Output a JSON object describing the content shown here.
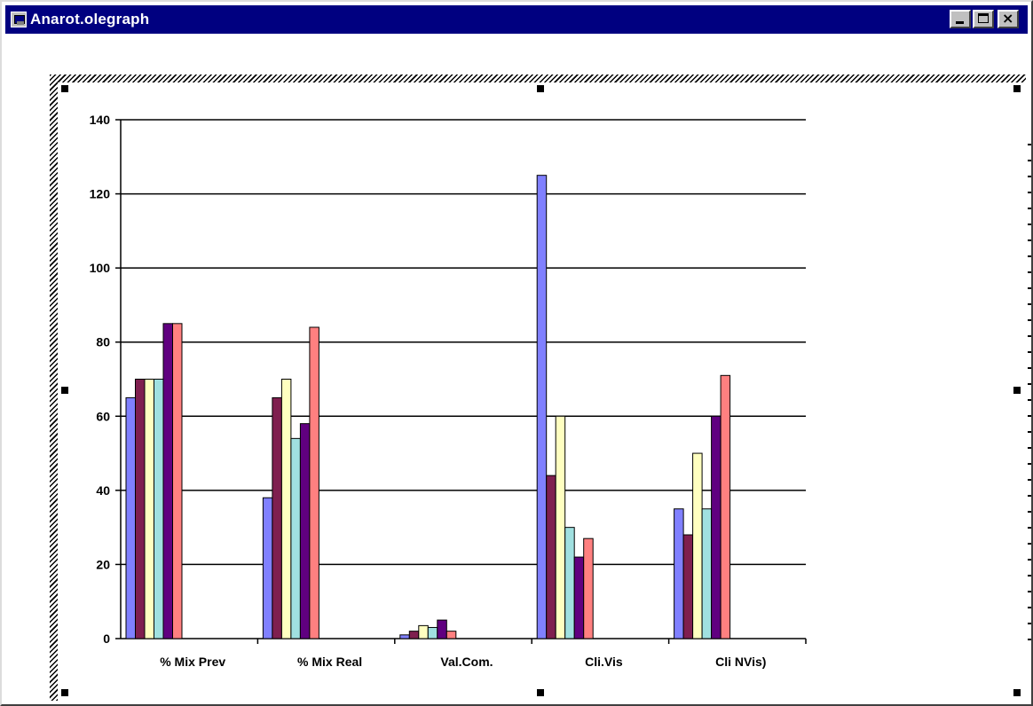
{
  "window": {
    "title": "Anarot.olegraph",
    "icon": "app-icon",
    "buttons": [
      "minimize-icon",
      "maximize-icon",
      "close-icon"
    ],
    "titlebar_color": "#000080"
  },
  "chart_data": {
    "type": "bar",
    "categories": [
      "% Mix Prev",
      "% Mix Real",
      "Val.Com.",
      "Cli.Vis",
      "Cli NVis)"
    ],
    "series": [
      {
        "color": "#8080ff",
        "values": [
          65,
          38,
          1,
          125,
          35
        ]
      },
      {
        "color": "#7f1f4f",
        "values": [
          70,
          65,
          2,
          44,
          28
        ]
      },
      {
        "color": "#ffffc0",
        "values": [
          70,
          70,
          3.5,
          60,
          50
        ]
      },
      {
        "color": "#a0e0e0",
        "values": [
          70,
          54,
          3,
          30,
          35
        ]
      },
      {
        "color": "#600080",
        "values": [
          85,
          58,
          5,
          22,
          60
        ]
      },
      {
        "color": "#ff8080",
        "values": [
          85,
          84,
          2,
          27,
          71
        ]
      }
    ],
    "yticks": [
      0,
      20,
      40,
      60,
      80,
      100,
      120,
      140
    ],
    "ylim": [
      0,
      140
    ],
    "grid": true,
    "legend": "none",
    "title": "",
    "xlabel": "",
    "ylabel": ""
  }
}
